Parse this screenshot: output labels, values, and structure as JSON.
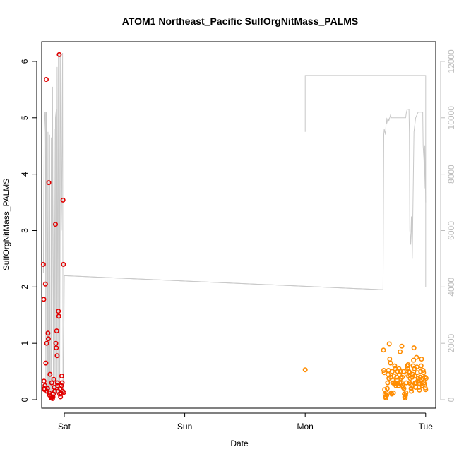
{
  "chart_data": {
    "type": "scatter",
    "title": "ATOM1 Northeast_Pacific SulfOrgNitMass_PALMS",
    "xlabel": "Date",
    "ylabel": "SulfOrgNitMass_PALMS",
    "x_ticks": [
      "Sat",
      "Sun",
      "Mon",
      "Tue"
    ],
    "x_range": [
      "Fri 19:30",
      "Tue 02:00"
    ],
    "y_left": {
      "range": [
        -0.15,
        6.35
      ],
      "ticks": [
        0,
        1,
        2,
        3,
        4,
        5,
        6
      ]
    },
    "y_right": {
      "range": [
        -300,
        12700
      ],
      "ticks": [
        0,
        2000,
        4000,
        6000,
        8000,
        10000,
        12000
      ],
      "color": "#bdbdbd"
    },
    "grid": false,
    "colors": {
      "series1": "#e00000",
      "series2": "#ff8c00",
      "altitude": "#c8c8c8"
    },
    "series": [
      {
        "marker": "open-circle",
        "color": "#e00000",
        "axis": "left",
        "x": [
          "Fri 19:50",
          "Fri 19:55",
          "Fri 19:58",
          "Fri 20:02",
          "Fri 20:05",
          "Fri 20:10",
          "Fri 20:15",
          "Fri 20:20",
          "Fri 20:25",
          "Fri 20:30",
          "Fri 20:35",
          "Fri 20:40",
          "Fri 20:45",
          "Fri 20:50",
          "Fri 20:55",
          "Fri 21:00",
          "Fri 21:05",
          "Fri 21:10",
          "Fri 21:20",
          "Fri 21:25",
          "Fri 21:30",
          "Fri 21:40",
          "Fri 21:45",
          "Fri 21:50",
          "Fri 21:55",
          "Fri 22:00",
          "Fri 22:05",
          "Fri 22:15",
          "Fri 22:20",
          "Fri 22:25",
          "Fri 22:30",
          "Fri 22:35",
          "Fri 22:38",
          "Fri 22:40",
          "Fri 22:45",
          "Fri 22:50",
          "Fri 22:55",
          "Fri 23:00",
          "Fri 23:05",
          "Fri 23:10",
          "Fri 23:15",
          "Fri 23:20",
          "Fri 23:25",
          "Fri 23:30",
          "Fri 23:35",
          "Fri 23:40",
          "Fri 23:45",
          "Fri 23:50",
          "Fri 23:55"
        ],
        "y": [
          2.4,
          1.78,
          0.33,
          0.2,
          0.18,
          0.25,
          2.05,
          0.65,
          5.68,
          1.0,
          0.15,
          0.2,
          1.18,
          1.08,
          3.85,
          0.12,
          0.08,
          0.45,
          0.05,
          0.03,
          0.3,
          0.02,
          0.05,
          0.1,
          0.36,
          0.22,
          0.15,
          3.11,
          1.0,
          0.92,
          1.22,
          0.78,
          0.3,
          0.25,
          0.15,
          1.57,
          1.48,
          6.12,
          0.1,
          0.2,
          0.05,
          0.12,
          0.25,
          0.42,
          0.3,
          0.15,
          3.54,
          2.4,
          0.13
        ]
      },
      {
        "marker": "open-circle",
        "color": "#ff8c00",
        "axis": "left",
        "x": [
          "Mon 00:00",
          "Mon 15:35",
          "Mon 15:40",
          "Mon 15:45",
          "Mon 15:50",
          "Mon 15:55",
          "Mon 16:00",
          "Mon 16:05",
          "Mon 16:10",
          "Mon 16:15",
          "Mon 16:20",
          "Mon 16:25",
          "Mon 16:30",
          "Mon 16:35",
          "Mon 16:40",
          "Mon 16:45",
          "Mon 16:50",
          "Mon 17:00",
          "Mon 17:05",
          "Mon 17:10",
          "Mon 17:15",
          "Mon 17:20",
          "Mon 17:25",
          "Mon 17:30",
          "Mon 17:35",
          "Mon 17:40",
          "Mon 17:45",
          "Mon 17:50",
          "Mon 17:55",
          "Mon 18:00",
          "Mon 18:05",
          "Mon 18:10",
          "Mon 18:15",
          "Mon 18:20",
          "Mon 18:25",
          "Mon 18:30",
          "Mon 18:35",
          "Mon 18:40",
          "Mon 18:45",
          "Mon 18:50",
          "Mon 18:55",
          "Mon 19:00",
          "Mon 19:05",
          "Mon 19:10",
          "Mon 19:15",
          "Mon 19:20",
          "Mon 19:25",
          "Mon 19:30",
          "Mon 19:35",
          "Mon 19:40",
          "Mon 19:45",
          "Mon 19:50",
          "Mon 19:55",
          "Mon 20:00",
          "Mon 20:05",
          "Mon 20:10",
          "Mon 20:15",
          "Mon 20:20",
          "Mon 20:25",
          "Mon 20:30",
          "Mon 20:35",
          "Mon 20:40",
          "Mon 20:45",
          "Mon 20:50",
          "Mon 20:55",
          "Mon 21:00",
          "Mon 21:05",
          "Mon 21:10",
          "Mon 21:15",
          "Mon 21:20",
          "Mon 21:25",
          "Mon 21:30",
          "Mon 21:35",
          "Mon 21:40",
          "Mon 21:45",
          "Mon 21:50",
          "Mon 21:55",
          "Mon 22:00",
          "Mon 22:05",
          "Mon 22:10",
          "Mon 22:15",
          "Mon 22:20",
          "Mon 22:25",
          "Mon 22:30",
          "Mon 22:35",
          "Mon 22:40",
          "Mon 22:45",
          "Mon 22:50",
          "Mon 22:55",
          "Mon 23:00",
          "Mon 23:05",
          "Mon 23:10",
          "Mon 23:15",
          "Mon 23:20",
          "Mon 23:25",
          "Mon 23:30",
          "Mon 23:35",
          "Mon 23:40",
          "Mon 23:45",
          "Mon 23:50",
          "Mon 23:55",
          "Tue 00:00",
          "Tue 00:05"
        ],
        "y": [
          0.53,
          0.88,
          0.52,
          0.48,
          0.18,
          0.1,
          0.05,
          0.03,
          0.12,
          0.08,
          0.2,
          0.3,
          0.45,
          0.52,
          0.38,
          0.99,
          0.72,
          0.65,
          0.4,
          0.12,
          0.1,
          0.5,
          0.35,
          0.3,
          0.12,
          0.42,
          0.28,
          0.6,
          0.55,
          0.3,
          0.25,
          0.28,
          0.4,
          0.35,
          0.5,
          0.28,
          0.25,
          0.55,
          0.45,
          0.3,
          0.85,
          0.5,
          0.38,
          0.3,
          0.95,
          0.4,
          0.25,
          0.22,
          0.5,
          0.2,
          0.1,
          0.05,
          0.03,
          0.08,
          0.12,
          0.3,
          0.45,
          0.6,
          0.55,
          0.62,
          0.42,
          0.5,
          0.3,
          0.48,
          0.38,
          0.28,
          0.2,
          0.15,
          0.25,
          0.4,
          0.45,
          0.6,
          0.7,
          0.92,
          0.55,
          0.42,
          0.3,
          0.22,
          0.3,
          0.75,
          0.58,
          0.48,
          0.33,
          0.38,
          0.28,
          0.22,
          0.17,
          0.28,
          0.4,
          0.5,
          0.6,
          0.72,
          0.35,
          0.25,
          0.38,
          0.52,
          0.48,
          0.3,
          0.27,
          0.4,
          0.21,
          0.18,
          0.38
        ]
      },
      {
        "type": "line",
        "color": "#c8c8c8",
        "axis": "right",
        "x": [
          "Fri 19:50",
          "Fri 20:00",
          "Fri 20:10",
          "Fri 20:15",
          "Fri 20:20",
          "Fri 20:25",
          "Fri 20:30",
          "Fri 20:40",
          "Fri 20:45",
          "Fri 20:50",
          "Fri 21:00",
          "Fri 21:05",
          "Fri 21:10",
          "Fri 21:20",
          "Fri 21:25",
          "Fri 21:30",
          "Fri 21:40",
          "Fri 21:50",
          "Fri 22:00",
          "Fri 22:10",
          "Fri 22:15",
          "Fri 22:25",
          "Fri 22:30",
          "Fri 22:35",
          "Fri 22:45",
          "Fri 22:50",
          "Fri 23:00",
          "Fri 23:05",
          "Fri 23:15",
          "Fri 23:20",
          "Fri 23:25",
          "Fri 23:30",
          "Fri 23:40",
          "Fri 23:45",
          "Fri 23:50",
          "Sat 00:00",
          "Mon 15:30",
          "Mon 15:40",
          "Mon 15:45",
          "Mon 16:00",
          "Mon 16:10",
          "Mon 16:15",
          "Mon 16:30",
          "Mon 16:40",
          "Mon 16:50",
          "Mon 17:00",
          "Mon 17:10",
          "Mon 17:20",
          "Mon 17:30",
          "Mon 17:40",
          "Mon 18:00",
          "Mon 18:10",
          "Mon 18:20",
          "Mon 18:40",
          "Mon 19:00",
          "Mon 19:10",
          "Mon 19:20",
          "Mon 19:30",
          "Mon 19:40",
          "Mon 20:00",
          "Mon 20:10",
          "Mon 20:20",
          "Mon 20:40",
          "Mon 20:45",
          "Mon 20:50",
          "Mon 21:00",
          "Mon 21:10",
          "Mon 21:20",
          "Mon 21:40",
          "Mon 22:00",
          "Mon 22:30",
          "Mon 22:40",
          "Mon 23:00",
          "Mon 23:20",
          "Mon 23:25",
          "Mon 23:30",
          "Mon 23:40",
          "Mon 23:45",
          "Mon 23:50",
          "Mon 23:55",
          "Tue 00:00"
        ],
        "y": [
          4500,
          9500,
          10200,
          10200,
          200,
          10200,
          10200,
          200,
          9500,
          300,
          200,
          9400,
          200,
          200,
          9300,
          200,
          11100,
          200,
          9600,
          200,
          10000,
          10300,
          200,
          11800,
          200,
          12300,
          12300,
          200,
          12300,
          12300,
          6000,
          7200,
          12300,
          200,
          200,
          4400,
          3900,
          9400,
          9600,
          9400,
          10000,
          9800,
          10000,
          9900,
          10000,
          10100,
          10000,
          10000,
          10000,
          10000,
          10000,
          10000,
          10000,
          10000,
          10000,
          10000,
          10000,
          10000,
          10000,
          10000,
          10200,
          10300,
          10300,
          9500,
          6000,
          5500,
          6500,
          5000,
          9500,
          10000,
          10200,
          10200,
          10200,
          10200,
          10200,
          9000,
          8500,
          7500,
          9000,
          8000,
          7000
        ]
      },
      {
        "type": "line",
        "color": "#c8c8c8",
        "axis": "right",
        "x": [
          "Sat 00:00",
          "Mon 15:30"
        ],
        "y": [
          4400,
          3900
        ]
      },
      {
        "type": "line",
        "color": "#c8c8c8",
        "axis": "right",
        "x": [
          "Mon 00:00",
          "Mon 00:00",
          "Tue 00:00",
          "Tue 00:00"
        ],
        "y": [
          9500,
          11500,
          11500,
          4000
        ]
      }
    ]
  }
}
